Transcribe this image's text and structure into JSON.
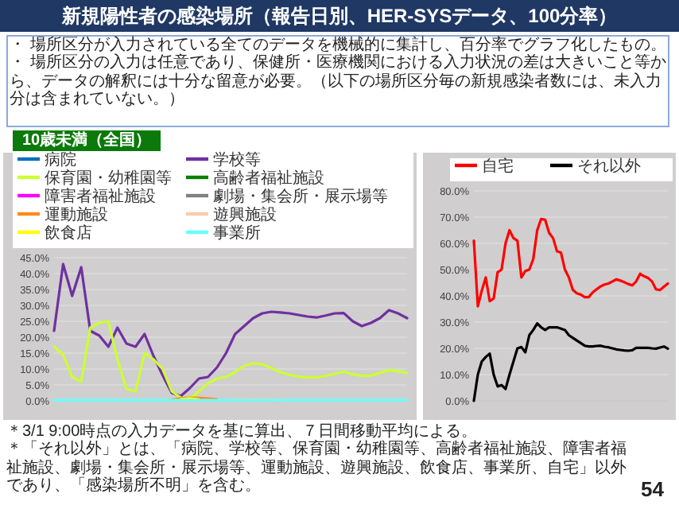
{
  "chart_data": [
    {
      "type": "line",
      "title": "新規陽性者の感染場所（報告日別、HER-SYSデータ、100分率）",
      "subtitle": "10歳未満（全国）",
      "annotations": [
        "・ 場所区分が入力されている全てのデータを機械的に集計し、百分率でグラフ化したもの。",
        "・ 場所区分の入力は任意であり、保健所・医療機関における入力状況の差は大きいこと等から、データの解釈には十分な留意が必要。（以下の場所区分毎の新規感染者数には、未入力分は含まれていない。）",
        "＊3/1 9:00時点の入力データを基に算出、７日間移動平均による。",
        "＊「それ以外」とは、「病院、学校等、保育園・幼稚園等、高齢者福祉施設、障害者福祉施設、劇場・集会所・展示場等、運動施設、遊興施設、飲食店、事業所、自宅」以外であり、「感染場所不明」を含む。",
        "54"
      ],
      "categories": [
        null,
        null,
        null,
        null,
        null,
        null,
        null,
        null,
        null,
        null,
        null,
        null,
        null,
        null,
        null,
        null,
        null,
        null,
        null,
        null,
        null,
        null,
        null,
        null,
        null,
        null,
        null,
        null,
        null,
        null,
        null,
        null,
        null,
        null,
        null,
        null,
        null,
        null,
        null,
        null
      ],
      "series": [
        {
          "name": "病院",
          "color": "#0070c0",
          "values": [
            null,
            null,
            null,
            null,
            null,
            null,
            null,
            null,
            null,
            null,
            null,
            null,
            null,
            null,
            null,
            null,
            null,
            null,
            null,
            null,
            null,
            null,
            null,
            null,
            null,
            null,
            null,
            null,
            null,
            null,
            null,
            null,
            null,
            null,
            null,
            null,
            null,
            null,
            null,
            null
          ]
        },
        {
          "name": "学校等",
          "color": "#7030a0",
          "values": [
            22,
            43,
            33,
            42,
            22,
            20.5,
            17,
            23,
            18,
            17,
            21,
            14,
            8,
            2.5,
            1.5,
            4,
            7,
            7.5,
            10.5,
            15,
            21,
            23.5,
            26,
            27.5,
            28,
            27.8,
            27.5,
            27,
            26.5,
            26.2,
            26.8,
            27.5,
            27.6,
            25,
            23.5,
            24.5,
            26,
            28.5,
            27.5,
            26
          ]
        },
        {
          "name": "保育園・幼稚園等",
          "color": "#ccff33",
          "values": [
            17,
            14.5,
            7.5,
            6,
            23,
            24.5,
            25,
            13,
            3.7,
            3,
            15,
            13,
            10,
            3,
            1,
            0.5,
            3,
            5.5,
            7,
            7.5,
            9,
            11,
            11.8,
            11.5,
            10.3,
            9,
            8.2,
            7.6,
            7.4,
            7.4,
            7.8,
            8.5,
            9.2,
            8.3,
            7.9,
            7.9,
            8.8,
            9.6,
            9.3,
            8.8
          ]
        },
        {
          "name": "高齢者福祉施設",
          "color": "#008000",
          "values": [
            null,
            null,
            null,
            null,
            null,
            null,
            null,
            null,
            null,
            null,
            null,
            null,
            null,
            null,
            null,
            null,
            null,
            null,
            null,
            null,
            null,
            null,
            null,
            null,
            null,
            null,
            null,
            null,
            null,
            null,
            null,
            null,
            null,
            null,
            null,
            null,
            null,
            null,
            null,
            null
          ]
        },
        {
          "name": "障害者福祉施設",
          "color": "#ff00ff",
          "values": [
            null,
            null,
            null,
            null,
            null,
            null,
            null,
            null,
            null,
            null,
            null,
            null,
            null,
            null,
            null,
            null,
            null,
            null,
            null,
            null,
            null,
            null,
            null,
            null,
            null,
            null,
            null,
            null,
            null,
            null,
            null,
            null,
            null,
            null,
            null,
            null,
            null,
            null,
            null,
            null
          ]
        },
        {
          "name": "劇場・集会所・展示場等",
          "color": "#808080",
          "values": [
            null,
            null,
            null,
            null,
            null,
            null,
            null,
            null,
            null,
            null,
            null,
            null,
            null,
            null,
            null,
            null,
            null,
            null,
            null,
            null,
            null,
            null,
            null,
            null,
            null,
            null,
            null,
            null,
            null,
            null,
            null,
            null,
            null,
            null,
            null,
            null,
            null,
            null,
            null,
            null
          ]
        },
        {
          "name": "運動施設",
          "color": "#ff8c1a",
          "values": [
            null,
            null,
            null,
            null,
            null,
            null,
            null,
            null,
            null,
            null,
            null,
            null,
            null,
            0.3,
            0.8,
            1,
            0.9,
            0.7,
            0.5,
            null,
            null,
            null,
            null,
            null,
            null,
            null,
            null,
            null,
            null,
            null,
            null,
            null,
            null,
            null,
            null,
            null,
            null,
            null,
            null,
            null
          ]
        },
        {
          "name": "遊興施設",
          "color": "#f8cbad",
          "values": [
            null,
            null,
            null,
            null,
            null,
            null,
            null,
            null,
            null,
            null,
            null,
            null,
            null,
            null,
            null,
            null,
            null,
            null,
            null,
            null,
            0.5,
            0.5,
            0.4,
            0.4,
            0.4,
            0.3,
            null,
            null,
            null,
            null,
            null,
            null,
            null,
            null,
            null,
            null,
            null,
            null,
            null,
            null
          ]
        },
        {
          "name": "飲食店",
          "color": "#ffff00",
          "values": [
            null,
            null,
            null,
            null,
            null,
            null,
            null,
            null,
            null,
            null,
            null,
            null,
            null,
            null,
            0.5,
            0.8,
            0.4,
            null,
            null,
            null,
            null,
            null,
            null,
            null,
            null,
            null,
            null,
            null,
            null,
            null,
            null,
            null,
            null,
            null,
            null,
            null,
            null,
            null,
            null,
            null
          ]
        },
        {
          "name": "事業所",
          "color": "#66ffff",
          "values": [
            0.2,
            0.2,
            0.2,
            0.2,
            0.2,
            0.2,
            0.2,
            0.2,
            0.2,
            0.2,
            0.2,
            0.2,
            0.2,
            0.2,
            0.2,
            0.2,
            0.2,
            0.2,
            0.2,
            0.2,
            0.2,
            0.2,
            0.2,
            0.2,
            0.2,
            0.2,
            0.2,
            0.2,
            0.2,
            0.2,
            0.2,
            0.2,
            0.2,
            0.2,
            0.2,
            0.2,
            0.2,
            0.2,
            0.2,
            0.2
          ]
        }
      ],
      "ylim": [
        0,
        45
      ],
      "yticks": [
        {
          "value": 0,
          "label": "0.0%"
        },
        {
          "value": 5,
          "label": "5.0%"
        },
        {
          "value": 10,
          "label": "10.0%"
        },
        {
          "value": 15,
          "label": "15.0%"
        },
        {
          "value": 20,
          "label": "20.0%"
        },
        {
          "value": 25,
          "label": "25.0%"
        },
        {
          "value": 30,
          "label": "30.0%"
        },
        {
          "value": 35,
          "label": "35.0%"
        },
        {
          "value": 40,
          "label": "40.0%"
        },
        {
          "value": 45,
          "label": "45.0%"
        }
      ],
      "grid": "y",
      "legend": "top",
      "tick_labels": "y"
    },
    {
      "type": "line",
      "categories": [
        null,
        null,
        null,
        null,
        null,
        null,
        null,
        null,
        null,
        null,
        null,
        null,
        null,
        null,
        null,
        null,
        null,
        null,
        null,
        null,
        null,
        null,
        null,
        null,
        null,
        null,
        null,
        null,
        null,
        null,
        null,
        null,
        null,
        null,
        null,
        null,
        null,
        null,
        null,
        null,
        null,
        null,
        null,
        null,
        null,
        null,
        null,
        null,
        null,
        null
      ],
      "series": [
        {
          "name": "自宅",
          "color": "#ff0000",
          "values": [
            61,
            36,
            42,
            47,
            38,
            39,
            49,
            50,
            60,
            65,
            62,
            61,
            47,
            49.5,
            50,
            54,
            65,
            69.3,
            69,
            64,
            62,
            57,
            56.5,
            50,
            47,
            42.3,
            41,
            40.5,
            39.5,
            39.5,
            41.3,
            42.5,
            43.6,
            44.3,
            44.7,
            45.5,
            46.3,
            45.8,
            45.2,
            44.5,
            44,
            45.5,
            48.4,
            47.5,
            46.8,
            45.5,
            42.5,
            42.2,
            43.5,
            44.7
          ]
        },
        {
          "name": "それ以外",
          "color": "#000000",
          "values": [
            0,
            10,
            15,
            16.7,
            18,
            10,
            5.5,
            6,
            4.5,
            10,
            15,
            20,
            20.5,
            18.5,
            25,
            27,
            29.5,
            28,
            27,
            28,
            28,
            28,
            27.5,
            27,
            25,
            24,
            23,
            22,
            21,
            20.7,
            20.7,
            20.9,
            21,
            20.6,
            20.4,
            20,
            19.6,
            19.4,
            19.2,
            19.1,
            19.3,
            20.2,
            20.2,
            20.2,
            20.2,
            20,
            19.9,
            20.3,
            20.7,
            19.9
          ]
        }
      ],
      "ylim": [
        0,
        80
      ],
      "yticks": [
        {
          "value": 0,
          "label": "0.0%"
        },
        {
          "value": 10,
          "label": "10.0%"
        },
        {
          "value": 20,
          "label": "20.0%"
        },
        {
          "value": 30,
          "label": "30.0%"
        },
        {
          "value": 40,
          "label": "40.0%"
        },
        {
          "value": 50,
          "label": "50.0%"
        },
        {
          "value": 60,
          "label": "60.0%"
        },
        {
          "value": 70,
          "label": "70.0%"
        },
        {
          "value": 80,
          "label": "80.0%"
        }
      ],
      "grid": "y",
      "legend": "top",
      "tick_labels": "y"
    }
  ]
}
